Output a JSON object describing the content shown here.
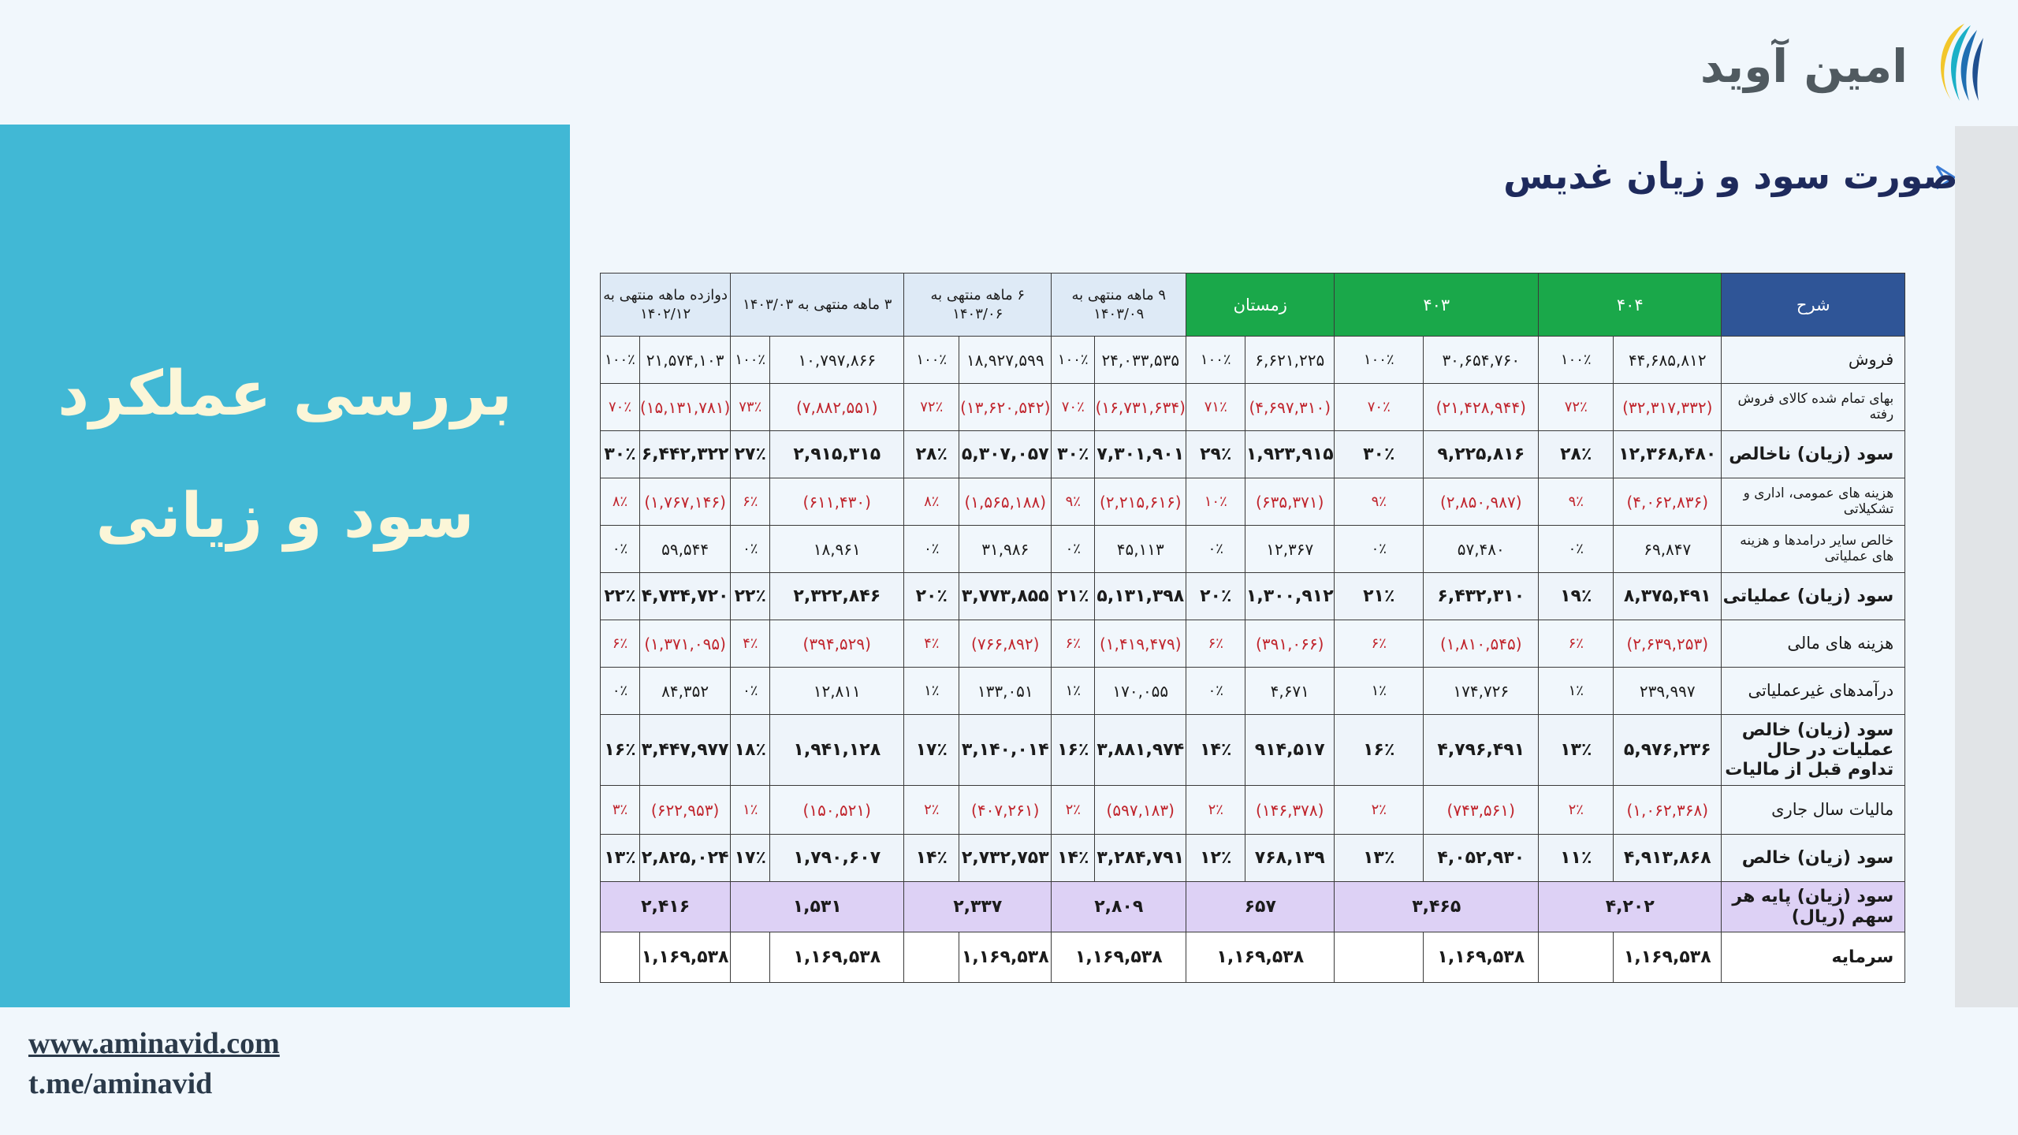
{
  "logo": {
    "text": "امین آوید",
    "icon": "aminavid-logo-icon"
  },
  "page_title": "صورت سود و زیان غدیس",
  "left_title": {
    "line1": "بررسی عملکرد",
    "line2": "سود و زیانی"
  },
  "footer": {
    "website": "www.aminavid.com",
    "telegram": "t.me/aminavid"
  },
  "colors": {
    "panel": "#41b8d5",
    "header_blue": "#2f5597",
    "header_green": "#1aa84a",
    "negative": "#c0242c",
    "eps_row": "#ddd1f5"
  },
  "table": {
    "headers": {
      "desc": "شرح",
      "p404": "۴۰۴",
      "p403": "۴۰۳",
      "winter": "زمستان",
      "m9": "۹ ماهه منتهی به ۱۴۰۳/۰۹",
      "m6": "۶ ماهه منتهی به ۱۴۰۳/۰۶",
      "m3": "۳ ماهه منتهی به ۱۴۰۳/۰۳",
      "m12": "دوازده ماهه منتهی به ۱۴۰۲/۱۲"
    },
    "rows": [
      {
        "label": "فروش",
        "p404_val": "۴۴,۶۸۵,۸۱۲",
        "p404_pct": "۱۰۰٪",
        "p403_val": "۳۰,۶۵۴,۷۶۰",
        "p403_pct": "۱۰۰٪",
        "win_val": "۶,۶۲۱,۲۲۵",
        "win_pct": "۱۰۰٪",
        "m9_val": "۲۴,۰۳۳,۵۳۵",
        "m9_pct": "۱۰۰٪",
        "m6_val": "۱۸,۹۲۷,۵۹۹",
        "m6_pct": "۱۰۰٪",
        "m3_val": "۱۰,۷۹۷,۸۶۶",
        "m3_pct": "۱۰۰٪",
        "m12_val": "۲۱,۵۷۴,۱۰۳",
        "m12_pct": "۱۰۰٪"
      },
      {
        "label": "بهای تمام شده کالای فروش رفته",
        "p404_val": "(۳۲,۳۱۷,۳۳۲)",
        "p404_pct": "۷۲٪",
        "p403_val": "(۲۱,۴۲۸,۹۴۴)",
        "p403_pct": "۷۰٪",
        "win_val": "(۴,۶۹۷,۳۱۰)",
        "win_pct": "۷۱٪",
        "m9_val": "(۱۶,۷۳۱,۶۳۴)",
        "m9_pct": "۷۰٪",
        "m6_val": "(۱۳,۶۲۰,۵۴۲)",
        "m6_pct": "۷۲٪",
        "m3_val": "(۷,۸۸۲,۵۵۱)",
        "m3_pct": "۷۳٪",
        "m12_val": "(۱۵,۱۳۱,۷۸۱)",
        "m12_pct": "۷۰٪"
      },
      {
        "label": "سود (زیان) ناخالص",
        "p404_val": "۱۲,۳۶۸,۴۸۰",
        "p404_pct": "۲۸٪",
        "p403_val": "۹,۲۲۵,۸۱۶",
        "p403_pct": "۳۰٪",
        "win_val": "۱,۹۲۳,۹۱۵",
        "win_pct": "۲۹٪",
        "m9_val": "۷,۳۰۱,۹۰۱",
        "m9_pct": "۳۰٪",
        "m6_val": "۵,۳۰۷,۰۵۷",
        "m6_pct": "۲۸٪",
        "m3_val": "۲,۹۱۵,۳۱۵",
        "m3_pct": "۲۷٪",
        "m12_val": "۶,۴۴۲,۳۲۲",
        "m12_pct": "۳۰٪"
      },
      {
        "label": "هزینه های عمومی، اداری و تشکیلاتی",
        "p404_val": "(۴,۰۶۲,۸۳۶)",
        "p404_pct": "۹٪",
        "p403_val": "(۲,۸۵۰,۹۸۷)",
        "p403_pct": "۹٪",
        "win_val": "(۶۳۵,۳۷۱)",
        "win_pct": "۱۰٪",
        "m9_val": "(۲,۲۱۵,۶۱۶)",
        "m9_pct": "۹٪",
        "m6_val": "(۱,۵۶۵,۱۸۸)",
        "m6_pct": "۸٪",
        "m3_val": "(۶۱۱,۴۳۰)",
        "m3_pct": "۶٪",
        "m12_val": "(۱,۷۶۷,۱۴۶)",
        "m12_pct": "۸٪"
      },
      {
        "label": "خالص سایر درامدها و هزینه های عملیاتی",
        "p404_val": "۶۹,۸۴۷",
        "p404_pct": "۰٪",
        "p403_val": "۵۷,۴۸۰",
        "p403_pct": "۰٪",
        "win_val": "۱۲,۳۶۷",
        "win_pct": "۰٪",
        "m9_val": "۴۵,۱۱۳",
        "m9_pct": "۰٪",
        "m6_val": "۳۱,۹۸۶",
        "m6_pct": "۰٪",
        "m3_val": "۱۸,۹۶۱",
        "m3_pct": "۰٪",
        "m12_val": "۵۹,۵۴۴",
        "m12_pct": "۰٪"
      },
      {
        "label": "سود (زیان) عملیاتی",
        "p404_val": "۸,۳۷۵,۴۹۱",
        "p404_pct": "۱۹٪",
        "p403_val": "۶,۴۳۲,۳۱۰",
        "p403_pct": "۲۱٪",
        "win_val": "۱,۳۰۰,۹۱۲",
        "win_pct": "۲۰٪",
        "m9_val": "۵,۱۳۱,۳۹۸",
        "m9_pct": "۲۱٪",
        "m6_val": "۳,۷۷۳,۸۵۵",
        "m6_pct": "۲۰٪",
        "m3_val": "۲,۳۲۲,۸۴۶",
        "m3_pct": "۲۲٪",
        "m12_val": "۴,۷۳۴,۷۲۰",
        "m12_pct": "۲۲٪"
      },
      {
        "label": "هزینه های مالی",
        "p404_val": "(۲,۶۳۹,۲۵۳)",
        "p404_pct": "۶٪",
        "p403_val": "(۱,۸۱۰,۵۴۵)",
        "p403_pct": "۶٪",
        "win_val": "(۳۹۱,۰۶۶)",
        "win_pct": "۶٪",
        "m9_val": "(۱,۴۱۹,۴۷۹)",
        "m9_pct": "۶٪",
        "m6_val": "(۷۶۶,۸۹۲)",
        "m6_pct": "۴٪",
        "m3_val": "(۳۹۴,۵۲۹)",
        "m3_pct": "۴٪",
        "m12_val": "(۱,۳۷۱,۰۹۵)",
        "m12_pct": "۶٪"
      },
      {
        "label": "درآمدهای غیرعملیاتی",
        "p404_val": "۲۳۹,۹۹۷",
        "p404_pct": "۱٪",
        "p403_val": "۱۷۴,۷۲۶",
        "p403_pct": "۱٪",
        "win_val": "۴,۶۷۱",
        "win_pct": "۰٪",
        "m9_val": "۱۷۰,۰۵۵",
        "m9_pct": "۱٪",
        "m6_val": "۱۳۳,۰۵۱",
        "m6_pct": "۱٪",
        "m3_val": "۱۲,۸۱۱",
        "m3_pct": "۰٪",
        "m12_val": "۸۴,۳۵۲",
        "m12_pct": "۰٪"
      },
      {
        "label": "سود (زیان) خالص عملیات در حال تداوم قبل از مالیات",
        "p404_val": "۵,۹۷۶,۲۳۶",
        "p404_pct": "۱۳٪",
        "p403_val": "۴,۷۹۶,۴۹۱",
        "p403_pct": "۱۶٪",
        "win_val": "۹۱۴,۵۱۷",
        "win_pct": "۱۴٪",
        "m9_val": "۳,۸۸۱,۹۷۴",
        "m9_pct": "۱۶٪",
        "m6_val": "۳,۱۴۰,۰۱۴",
        "m6_pct": "۱۷٪",
        "m3_val": "۱,۹۴۱,۱۲۸",
        "m3_pct": "۱۸٪",
        "m12_val": "۳,۴۴۷,۹۷۷",
        "m12_pct": "۱۶٪"
      },
      {
        "label": "مالیات سال جاری",
        "p404_val": "(۱,۰۶۲,۳۶۸)",
        "p404_pct": "۲٪",
        "p403_val": "(۷۴۳,۵۶۱)",
        "p403_pct": "۲٪",
        "win_val": "(۱۴۶,۳۷۸)",
        "win_pct": "۲٪",
        "m9_val": "(۵۹۷,۱۸۳)",
        "m9_pct": "۲٪",
        "m6_val": "(۴۰۷,۲۶۱)",
        "m6_pct": "۲٪",
        "m3_val": "(۱۵۰,۵۲۱)",
        "m3_pct": "۱٪",
        "m12_val": "(۶۲۲,۹۵۳)",
        "m12_pct": "۳٪"
      },
      {
        "label": "سود (زیان) خالص",
        "p404_val": "۴,۹۱۳,۸۶۸",
        "p404_pct": "۱۱٪",
        "p403_val": "۴,۰۵۲,۹۳۰",
        "p403_pct": "۱۳٪",
        "win_val": "۷۶۸,۱۳۹",
        "win_pct": "۱۲٪",
        "m9_val": "۳,۲۸۴,۷۹۱",
        "m9_pct": "۱۴٪",
        "m6_val": "۲,۷۳۲,۷۵۳",
        "m6_pct": "۱۴٪",
        "m3_val": "۱,۷۹۰,۶۰۷",
        "m3_pct": "۱۷٪",
        "m12_val": "۲,۸۲۵,۰۲۴",
        "m12_pct": "۱۳٪"
      }
    ],
    "eps": {
      "label": "سود (زیان) پایه هر سهم (ریال)",
      "p404": "۴,۲۰۲",
      "p403": "۳,۴۶۵",
      "win": "۶۵۷",
      "m9": "۲,۸۰۹",
      "m6": "۲,۳۳۷",
      "m3": "۱,۵۳۱",
      "m12": "۲,۴۱۶"
    },
    "capital": {
      "label": "سرمایه",
      "p404": "۱,۱۶۹,۵۳۸",
      "p403": "۱,۱۶۹,۵۳۸",
      "win": "۱,۱۶۹,۵۳۸",
      "m9": "۱,۱۶۹,۵۳۸",
      "m6": "۱,۱۶۹,۵۳۸",
      "m3": "۱,۱۶۹,۵۳۸",
      "m12": "۱,۱۶۹,۵۳۸"
    }
  }
}
